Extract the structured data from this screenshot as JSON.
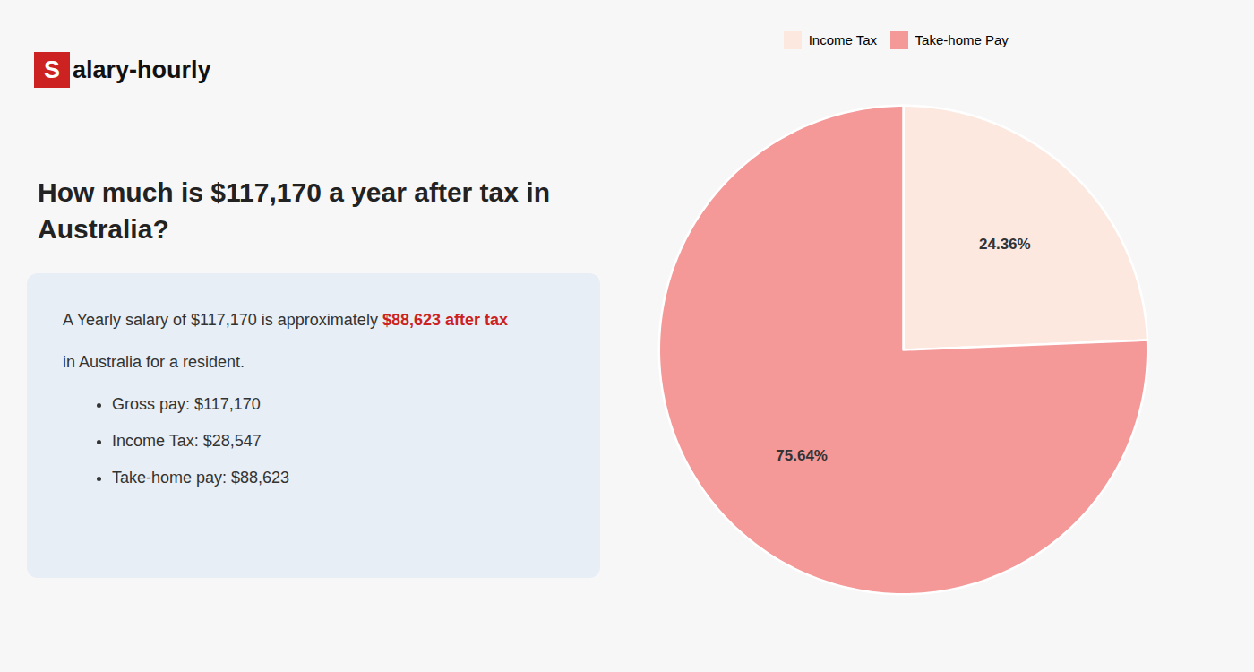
{
  "chart_data": {
    "type": "pie",
    "title": "How much is $117,170 a year after tax in Australia?",
    "categories": [
      "Income Tax",
      "Take-home Pay"
    ],
    "values": [
      24.36,
      75.64
    ],
    "value_labels": [
      "24.36%",
      "75.64%"
    ],
    "colors": [
      "#fce8df",
      "#f49898"
    ],
    "data_labels": true,
    "legend": "top",
    "annotations": [
      {
        "text": "S",
        "color": "#cc2222"
      },
      {
        "text": "alary-hourly"
      },
      {
        "text": "A Yearly salary of $117,170 is approximately "
      },
      {
        "text": "$88,623 after tax",
        "color": "#cc2222"
      },
      {
        "text": "in Australia for a resident."
      },
      {
        "text": "Gross pay: $117,170",
        "marker": "circle"
      },
      {
        "text": "Income Tax: $28,547",
        "marker": "circle"
      },
      {
        "text": "Take-home pay: $88,623",
        "marker": "circle"
      }
    ]
  }
}
